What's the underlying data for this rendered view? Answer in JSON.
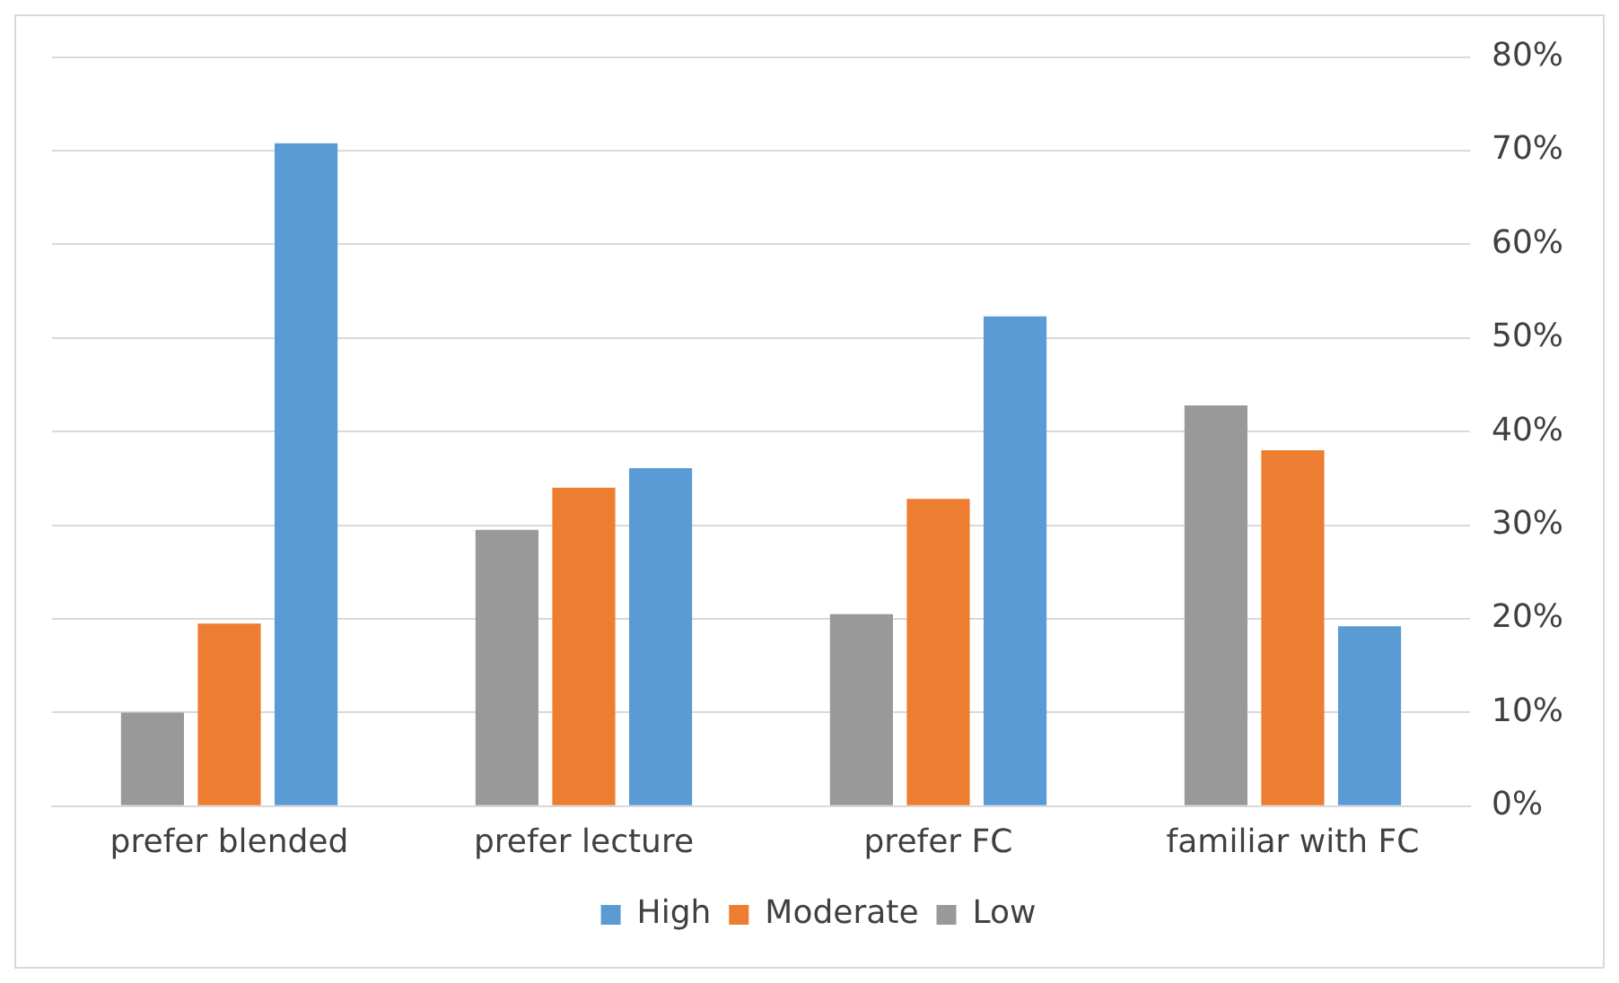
{
  "chart_data": {
    "type": "bar",
    "categories": [
      "prefer blended",
      "prefer lecture",
      "prefer FC",
      "familiar with FC"
    ],
    "series": [
      {
        "name": "Low",
        "color": "#999999",
        "values": [
          10,
          29.5,
          20.5,
          42.8
        ]
      },
      {
        "name": "Moderate",
        "color": "#ed7d31",
        "values": [
          19.5,
          34,
          32.8,
          38
        ]
      },
      {
        "name": "High",
        "color": "#5b9bd5",
        "values": [
          70.8,
          36.1,
          52.3,
          19.2
        ]
      }
    ],
    "ylim": [
      0,
      80
    ],
    "yticks": [
      {
        "value": 0,
        "label": "0%"
      },
      {
        "value": 10,
        "label": "10%"
      },
      {
        "value": 20,
        "label": "20%"
      },
      {
        "value": 30,
        "label": "30%"
      },
      {
        "value": 40,
        "label": "40%"
      },
      {
        "value": 50,
        "label": "50%"
      },
      {
        "value": 60,
        "label": "60%"
      },
      {
        "value": 70,
        "label": "70%"
      },
      {
        "value": 80,
        "label": "80%"
      }
    ],
    "grid": "y",
    "legend": "bottom"
  }
}
